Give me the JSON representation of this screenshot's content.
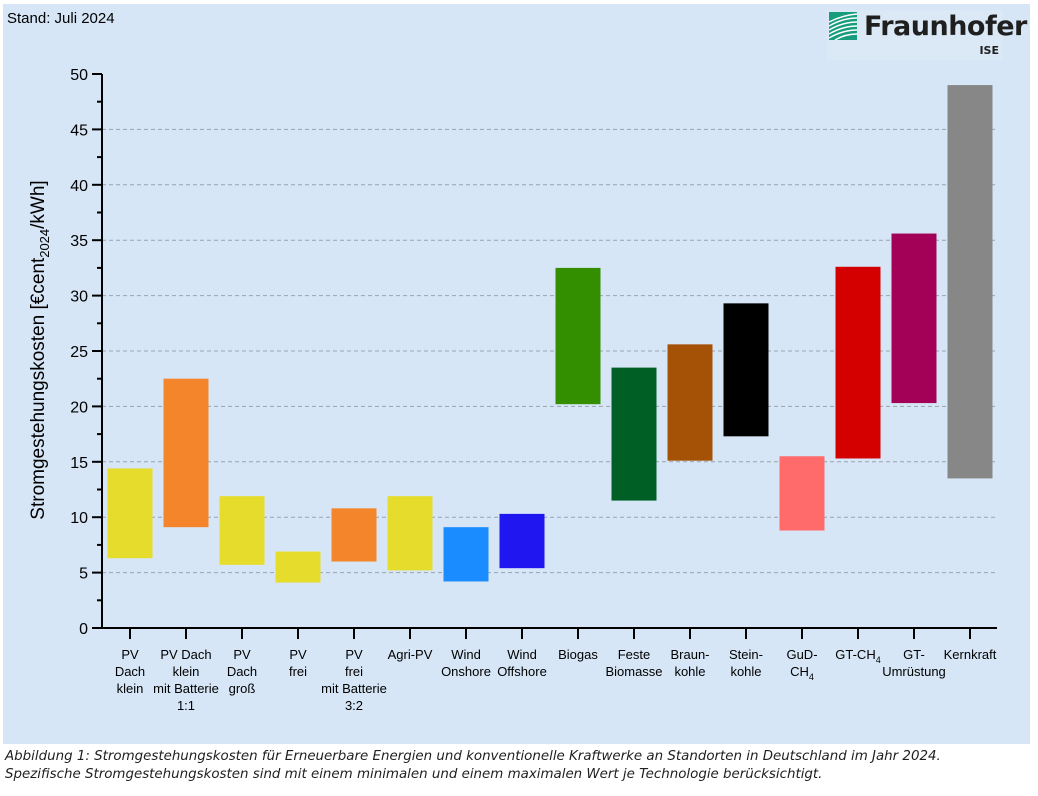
{
  "stand": "Stand: Juli 2024",
  "logo": {
    "name": "Fraunhofer",
    "sub": "ISE",
    "color": "#179c7d"
  },
  "caption": {
    "line1": "Abbildung 1: Stromgestehungskosten für Erneuerbare Energien und konventionelle Kraftwerke an Standorten in Deutschland im Jahr 2024.",
    "line2": "Spezifische Stromgestehungskosten sind mit einem minimalen und einem maximalen Wert je Technologie berücksichtigt."
  },
  "chart_data": {
    "type": "bar",
    "subtype": "floating-range",
    "title": "",
    "xlabel": "",
    "ylabel": "Stromgestehungskosten [€cent2024/kWh]",
    "ylabel_parts": {
      "main": "Stromgestehungskosten [€cent",
      "sub": "2024",
      "tail": "/kWh]"
    },
    "ylim": [
      0,
      50
    ],
    "yticks": [
      0,
      5,
      10,
      15,
      20,
      25,
      30,
      35,
      40,
      45,
      50
    ],
    "grid": true,
    "categories": [
      {
        "lines": [
          "PV",
          "Dach",
          "klein"
        ],
        "min": 6.3,
        "max": 14.4,
        "color": "#e6dc2c"
      },
      {
        "lines": [
          "PV Dach",
          "klein",
          "mit Batterie",
          "1:1"
        ],
        "min": 9.1,
        "max": 22.5,
        "color": "#f5852a"
      },
      {
        "lines": [
          "PV",
          "Dach",
          "groß"
        ],
        "min": 5.7,
        "max": 11.9,
        "color": "#e6dc2c"
      },
      {
        "lines": [
          "PV",
          "frei"
        ],
        "min": 4.1,
        "max": 6.9,
        "color": "#e6dc2c"
      },
      {
        "lines": [
          "PV",
          "frei",
          "mit Batterie",
          "3:2"
        ],
        "min": 6.0,
        "max": 10.8,
        "color": "#f5852a"
      },
      {
        "lines": [
          "Agri-PV"
        ],
        "min": 5.2,
        "max": 11.9,
        "color": "#e6dc2c"
      },
      {
        "lines": [
          "Wind",
          "Onshore"
        ],
        "min": 4.2,
        "max": 9.1,
        "color": "#1a8cff"
      },
      {
        "lines": [
          "Wind",
          "Offshore"
        ],
        "min": 5.4,
        "max": 10.3,
        "color": "#2016f0"
      },
      {
        "lines": [
          "Biogas"
        ],
        "min": 20.2,
        "max": 32.5,
        "color": "#338f00"
      },
      {
        "lines": [
          "Feste",
          "Biomasse"
        ],
        "min": 11.5,
        "max": 23.5,
        "color": "#005f24"
      },
      {
        "lines": [
          "Braun-",
          "kohle"
        ],
        "min": 15.1,
        "max": 25.6,
        "color": "#a65206"
      },
      {
        "lines": [
          "Stein-",
          "kohle"
        ],
        "min": 17.3,
        "max": 29.3,
        "color": "#000000"
      },
      {
        "lines": [
          "GuD-",
          "CH|4"
        ],
        "min": 8.8,
        "max": 15.5,
        "color": "#ff6a6a"
      },
      {
        "lines": [
          "GT-CH|4"
        ],
        "min": 15.3,
        "max": 32.6,
        "color": "#d40000"
      },
      {
        "lines": [
          "GT-",
          "Umrüstung"
        ],
        "min": 20.3,
        "max": 35.6,
        "color": "#a30058"
      },
      {
        "lines": [
          "Kernkraft"
        ],
        "min": 13.5,
        "max": 49.0,
        "color": "#878787"
      }
    ]
  }
}
